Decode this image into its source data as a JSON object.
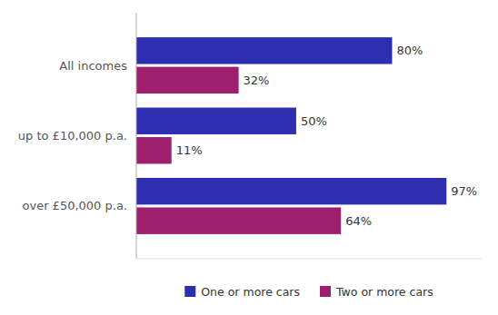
{
  "chart_data": {
    "type": "bar",
    "orientation": "horizontal",
    "categories": [
      "over £50,000 p.a.",
      "up to £10,000 p.a.",
      "All incomes"
    ],
    "series": [
      {
        "name": "One or more cars",
        "color": "#2e2eb0",
        "values": [
          97,
          50,
          80
        ],
        "value_labels": [
          "97%",
          "50%",
          "80%"
        ]
      },
      {
        "name": "Two or more cars",
        "color": "#9e1f6e",
        "values": [
          64,
          11,
          32
        ],
        "value_labels": [
          "64%",
          "11%",
          "32%"
        ]
      }
    ],
    "xlim": [
      0,
      108
    ],
    "grid": false,
    "legend": "bottom",
    "data_labels": true,
    "tick_labels": "y"
  }
}
